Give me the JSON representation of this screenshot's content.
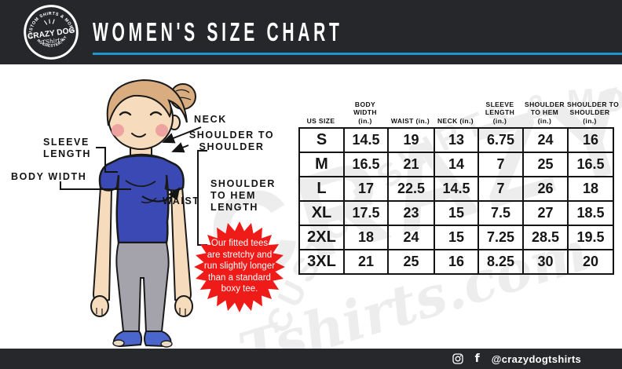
{
  "header": {
    "title": "WOMEN'S SIZE CHART",
    "logo": {
      "arc_top": "CUSTOM SHIRTS & MORE",
      "name": "CRAZY DOG",
      "script": "TShirts",
      "arc_bottom": "ROCHESTER, NY"
    }
  },
  "colors": {
    "header_bg": "#25272A",
    "accent_blue": "#1E96D2",
    "badge_red": "#EE1B18",
    "shirt_blue": "#3A49B4",
    "pants_gray": "#A4A3AC",
    "table_border": "#141414",
    "watermark_gray": "#EDEDED",
    "footer_bg": "#26282B"
  },
  "diagram": {
    "labels": {
      "sleeve_length": "SLEEVE\nLENGTH",
      "body_width": "BODY WIDTH",
      "neck": "NECK",
      "shoulder_to_shoulder": "SHOULDER TO\nSHOULDER",
      "shoulder_to_hem": "SHOULDER\nTO HEM\nLENGTH",
      "waist": "WAIST"
    },
    "badge_note": "Our fitted tees\nare stretchy and\nrun slightly longer\nthan a standard\nboxy tee."
  },
  "table": {
    "headers": [
      "US SIZE",
      "BODY\nWIDTH\n(in.)",
      "WAIST (in.)",
      "NECK (in.)",
      "SLEEVE\nLENGTH\n(in.)",
      "SHOULDER\nTO HEM\n(in.)",
      "SHOULDER TO\nSHOULDER\n(in.)"
    ],
    "rows": [
      {
        "size": "S",
        "values": [
          "14.5",
          "19",
          "13",
          "6.75",
          "24",
          "16"
        ]
      },
      {
        "size": "M",
        "values": [
          "16.5",
          "21",
          "14",
          "7",
          "25",
          "16.5"
        ]
      },
      {
        "size": "L",
        "values": [
          "17",
          "22.5",
          "14.5",
          "7",
          "26",
          "18"
        ]
      },
      {
        "size": "XL",
        "values": [
          "17.5",
          "23",
          "15",
          "7.5",
          "27",
          "18.5"
        ]
      },
      {
        "size": "2XL",
        "values": [
          "18",
          "24",
          "15",
          "7.25",
          "28.5",
          "19.5"
        ]
      },
      {
        "size": "3XL",
        "values": [
          "21",
          "25",
          "16",
          "8.25",
          "30",
          "20"
        ]
      }
    ]
  },
  "watermarks": {
    "arc": "CUSTOM SHIRTS & MORE",
    "big": "CRAZY",
    "script": "Tshirts.com"
  },
  "footer": {
    "handle": "@crazydogtshirts"
  }
}
